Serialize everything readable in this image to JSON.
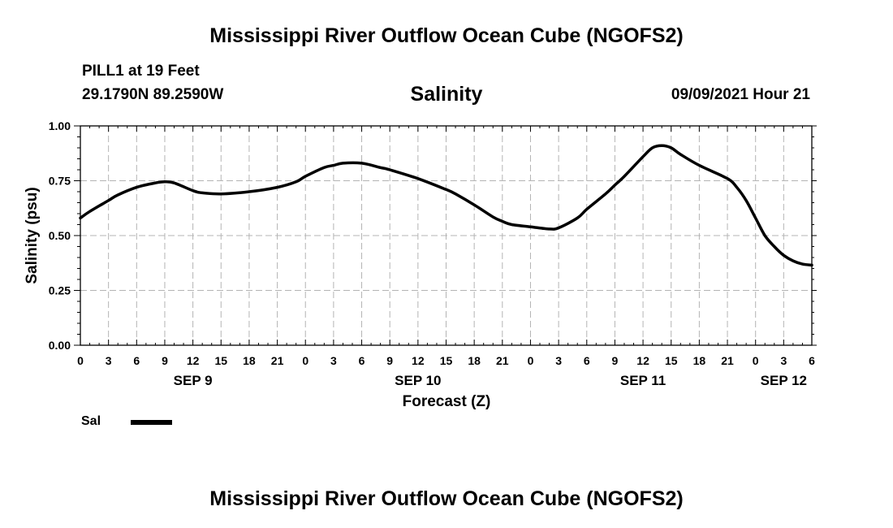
{
  "header": {
    "title": "Mississippi River Outflow Ocean Cube (NGOFS2)",
    "station": "PILL1 at 19 Feet",
    "coordinates": "29.1790N  89.2590W",
    "datetime": "09/09/2021 Hour 21"
  },
  "footer": {
    "title": "Mississippi River Outflow Ocean Cube (NGOFS2)"
  },
  "legend": {
    "label": "Sal"
  },
  "chart_data": {
    "type": "line",
    "title": "Salinity",
    "xlabel": "Forecast (Z)",
    "ylabel": "Salinity (psu)",
    "ylim": [
      0,
      1
    ],
    "xlim": [
      0,
      78
    ],
    "y_ticks": [
      "0.00",
      "0.25",
      "0.50",
      "0.75",
      "1.00"
    ],
    "x_tick_hours": [
      0,
      3,
      6,
      9,
      12,
      15,
      18,
      21,
      24,
      27,
      30,
      33,
      36,
      39,
      42,
      45,
      48,
      51,
      54,
      57,
      60,
      63,
      66,
      69,
      72,
      75,
      78
    ],
    "x_tick_labels": [
      "0",
      "3",
      "6",
      "9",
      "12",
      "15",
      "18",
      "21",
      "0",
      "3",
      "6",
      "9",
      "12",
      "15",
      "18",
      "21",
      "0",
      "3",
      "6",
      "9",
      "12",
      "15",
      "18",
      "21",
      "0",
      "3",
      "6"
    ],
    "date_labels": [
      {
        "label": "SEP 9",
        "hour": 12
      },
      {
        "label": "SEP 10",
        "hour": 36
      },
      {
        "label": "SEP 11",
        "hour": 60
      },
      {
        "label": "SEP 12",
        "hour": 75
      }
    ],
    "grid": true,
    "series": [
      {
        "name": "Sal",
        "color": "#000000",
        "x": [
          0,
          1,
          3,
          4,
          6,
          8,
          9,
          10,
          12,
          13,
          15,
          18,
          21,
          23,
          24,
          26,
          27,
          28,
          30,
          32,
          33,
          36,
          39,
          40,
          42,
          44,
          45,
          46,
          48,
          50,
          51,
          53,
          54,
          56,
          57,
          58,
          60,
          61,
          62,
          63,
          64,
          66,
          69,
          70,
          71,
          72,
          73,
          74,
          75,
          76,
          77,
          78
        ],
        "values": [
          0.58,
          0.61,
          0.66,
          0.685,
          0.72,
          0.74,
          0.745,
          0.74,
          0.705,
          0.695,
          0.69,
          0.7,
          0.72,
          0.745,
          0.77,
          0.81,
          0.82,
          0.83,
          0.83,
          0.81,
          0.8,
          0.76,
          0.71,
          0.69,
          0.64,
          0.585,
          0.565,
          0.55,
          0.54,
          0.53,
          0.535,
          0.58,
          0.62,
          0.69,
          0.73,
          0.77,
          0.86,
          0.9,
          0.91,
          0.9,
          0.87,
          0.82,
          0.76,
          0.72,
          0.66,
          0.58,
          0.5,
          0.45,
          0.41,
          0.385,
          0.37,
          0.365
        ]
      }
    ]
  }
}
